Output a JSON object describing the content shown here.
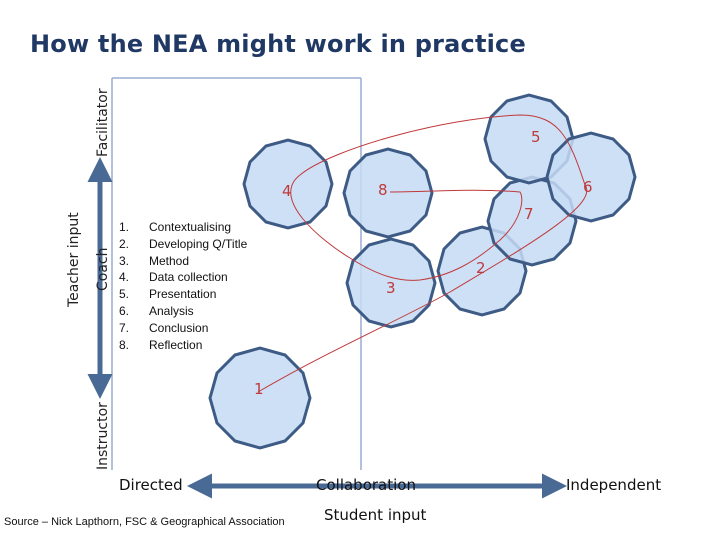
{
  "title": "How the NEA might work in practice",
  "axes": {
    "y_top": "Facilitator",
    "y_middle": "Coach",
    "y_bottom": "Instructor",
    "y_outer": "Teacher input",
    "x_left": "Directed",
    "x_middle": "Collaboration",
    "x_right": "Independent",
    "x_outer": "Student input"
  },
  "steps": [
    {
      "n": "1.",
      "label": "Contextualising"
    },
    {
      "n": "2.",
      "label": "Developing Q/Title"
    },
    {
      "n": "3.",
      "label": "Method"
    },
    {
      "n": "4.",
      "label": "Data collection"
    },
    {
      "n": "5.",
      "label": "Presentation"
    },
    {
      "n": "6.",
      "label": "Analysis"
    },
    {
      "n": "7.",
      "label": "Conclusion"
    },
    {
      "n": "8.",
      "label": "Reflection"
    }
  ],
  "stage_numbers": [
    "1",
    "2",
    "3",
    "4",
    "5",
    "6",
    "7",
    "8"
  ],
  "source": "Source – Nick Lapthorn, FSC & Geographical Association",
  "colors": {
    "title": "#1f3864",
    "shape_fill": "#c5dbf5",
    "shape_stroke": "#3d5b85",
    "path_line": "#c0393b",
    "axis_line": "#9aaed0",
    "arrow": "#4a6a96"
  }
}
